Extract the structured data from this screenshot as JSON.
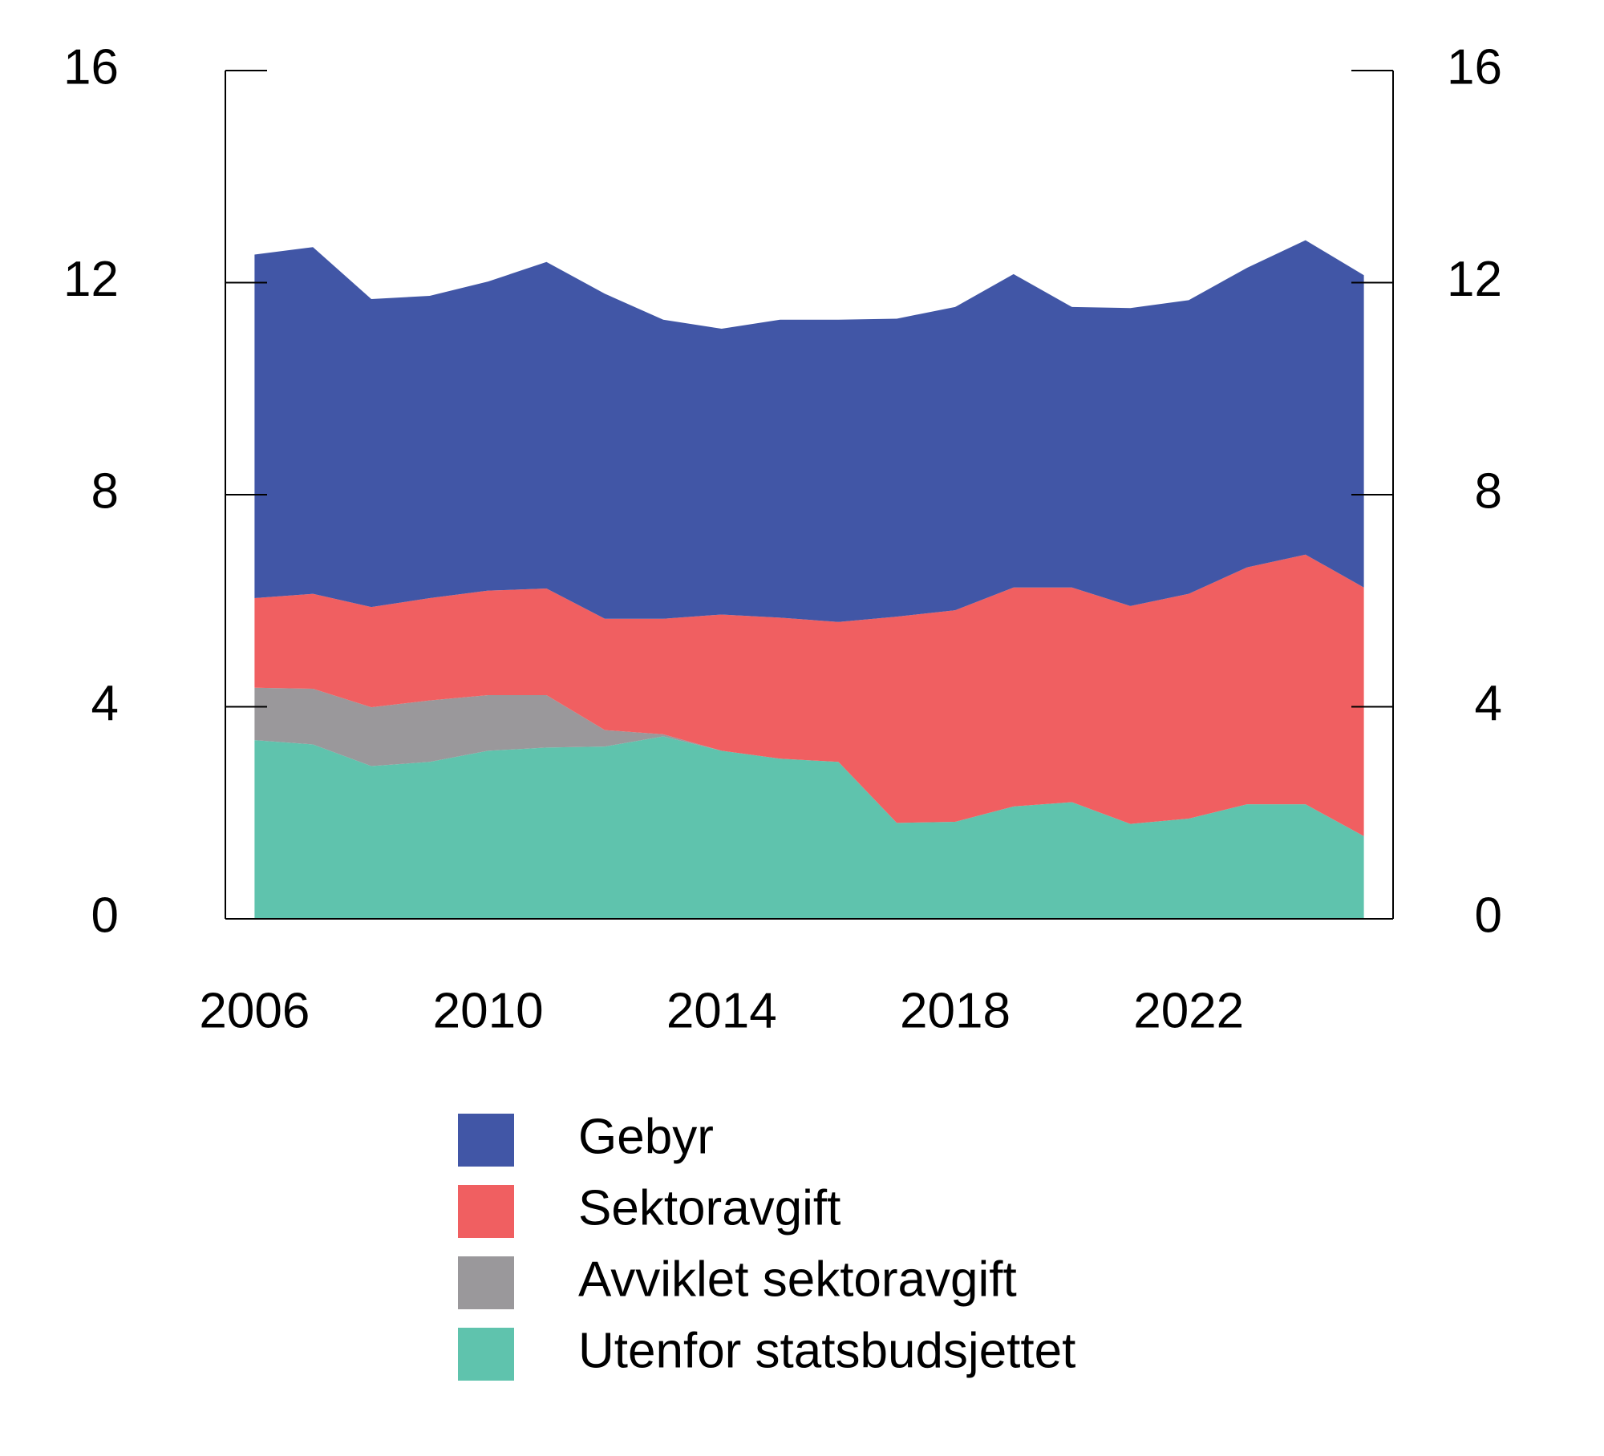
{
  "chart_data": {
    "type": "stacked-area",
    "x": [
      2006,
      2007,
      2008,
      2009,
      2010,
      2011,
      2012,
      2013,
      2014,
      2015,
      2016,
      2017,
      2018,
      2019,
      2020,
      2021,
      2022,
      2023,
      2024,
      2025
    ],
    "xlim": [
      2005.5,
      2025.5
    ],
    "xticks": [
      2006,
      2010,
      2014,
      2018,
      2022
    ],
    "ylim": [
      0,
      16
    ],
    "yticks": [
      0,
      4,
      8,
      12,
      16
    ],
    "y2lim": [
      0,
      16
    ],
    "y2ticks": [
      0,
      4,
      8,
      12,
      16
    ],
    "series": [
      {
        "name": "Gebyr",
        "color": "#4156a6",
        "values": [
          6.48,
          6.54,
          5.81,
          5.7,
          5.83,
          6.16,
          6.13,
          5.64,
          5.39,
          5.62,
          5.7,
          5.62,
          5.72,
          5.91,
          5.29,
          5.62,
          5.54,
          5.65,
          5.93,
          5.89
        ]
      },
      {
        "name": "Sektoravgift",
        "color": "#f05f61",
        "values": [
          1.69,
          1.79,
          1.89,
          1.93,
          1.97,
          2.01,
          2.1,
          2.18,
          2.57,
          2.66,
          2.64,
          3.89,
          3.99,
          4.13,
          4.05,
          4.11,
          4.24,
          4.47,
          4.71,
          4.69
        ]
      },
      {
        "name": "Avviklet sektoravgift",
        "color": "#9a989b",
        "values": [
          0.99,
          1.05,
          1.11,
          1.16,
          1.05,
          0.99,
          0.31,
          0.04,
          0,
          0,
          0,
          0,
          0,
          0,
          0,
          0,
          0,
          0,
          0,
          0
        ]
      },
      {
        "name": "Utenfor statsbudsjettet",
        "color": "#5fc3ad",
        "values": [
          3.37,
          3.29,
          2.88,
          2.96,
          3.17,
          3.23,
          3.25,
          3.44,
          3.17,
          3.02,
          2.96,
          1.81,
          1.83,
          2.12,
          2.2,
          1.79,
          1.89,
          2.16,
          2.16,
          1.56
        ]
      }
    ]
  }
}
